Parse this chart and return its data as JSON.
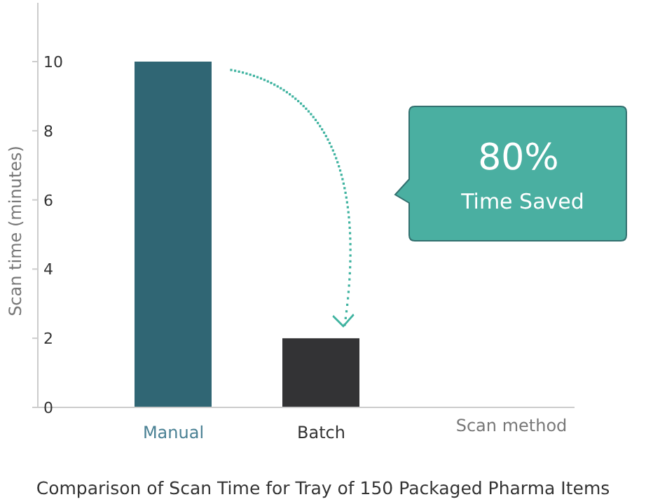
{
  "chart_data": {
    "type": "bar",
    "title": "Comparison of Scan Time for Tray of 150 Packaged Pharma Items",
    "xlabel": "Scan method",
    "ylabel": "Scan time (minutes)",
    "categories": [
      "Manual",
      "Batch"
    ],
    "values": [
      10,
      2
    ],
    "colors": [
      "#306674",
      "#333335"
    ],
    "ylim": [
      0,
      11.7
    ],
    "yticks": [
      0,
      2,
      4,
      6,
      8,
      10
    ],
    "annotations": [
      "80%",
      "Time Saved"
    ]
  }
}
